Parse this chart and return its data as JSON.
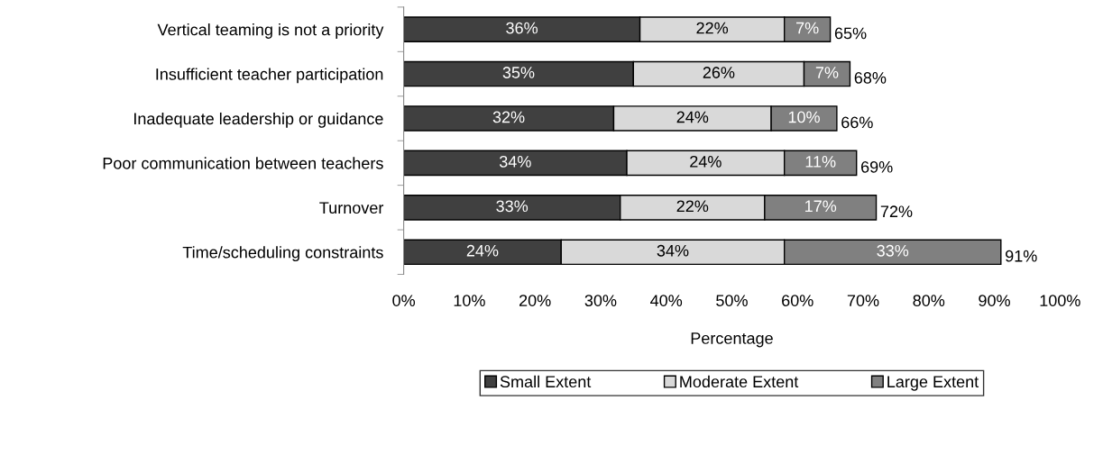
{
  "chart_data": {
    "type": "bar",
    "orientation": "horizontal",
    "stacked": true,
    "xlabel": "Percentage",
    "categories": [
      "Vertical teaming is not a priority",
      "Insufficient teacher participation",
      "Inadequate leadership or guidance",
      "Poor communication between teachers",
      "Turnover",
      "Time/scheduling constraints"
    ],
    "series": [
      {
        "name": "Small Extent",
        "color": "#404040",
        "values": [
          36,
          35,
          32,
          34,
          33,
          24
        ],
        "value_labels": [
          "36%",
          "35%",
          "32%",
          "34%",
          "33%",
          "24%"
        ]
      },
      {
        "name": "Moderate Extent",
        "color": "#d9d9d9",
        "values": [
          22,
          26,
          24,
          24,
          22,
          34
        ],
        "value_labels": [
          "22%",
          "26%",
          "24%",
          "24%",
          "22%",
          "34%"
        ]
      },
      {
        "name": "Large Extent",
        "color": "#808080",
        "values": [
          7,
          7,
          10,
          11,
          17,
          33
        ],
        "value_labels": [
          "7%",
          "7%",
          "10%",
          "11%",
          "17%",
          "33%"
        ]
      }
    ],
    "totals": [
      "65%",
      "68%",
      "66%",
      "69%",
      "72%",
      "91%"
    ],
    "xlim": [
      0,
      100
    ],
    "xticks": [
      {
        "value": 0,
        "label": "0%"
      },
      {
        "value": 10,
        "label": "10%"
      },
      {
        "value": 20,
        "label": "20%"
      },
      {
        "value": 30,
        "label": "30%"
      },
      {
        "value": 40,
        "label": "40%"
      },
      {
        "value": 50,
        "label": "50%"
      },
      {
        "value": 60,
        "label": "60%"
      },
      {
        "value": 70,
        "label": "70%"
      },
      {
        "value": 80,
        "label": "80%"
      },
      {
        "value": 90,
        "label": "90%"
      },
      {
        "value": 100,
        "label": "100%"
      }
    ],
    "grid": false,
    "legend": "bottom"
  }
}
